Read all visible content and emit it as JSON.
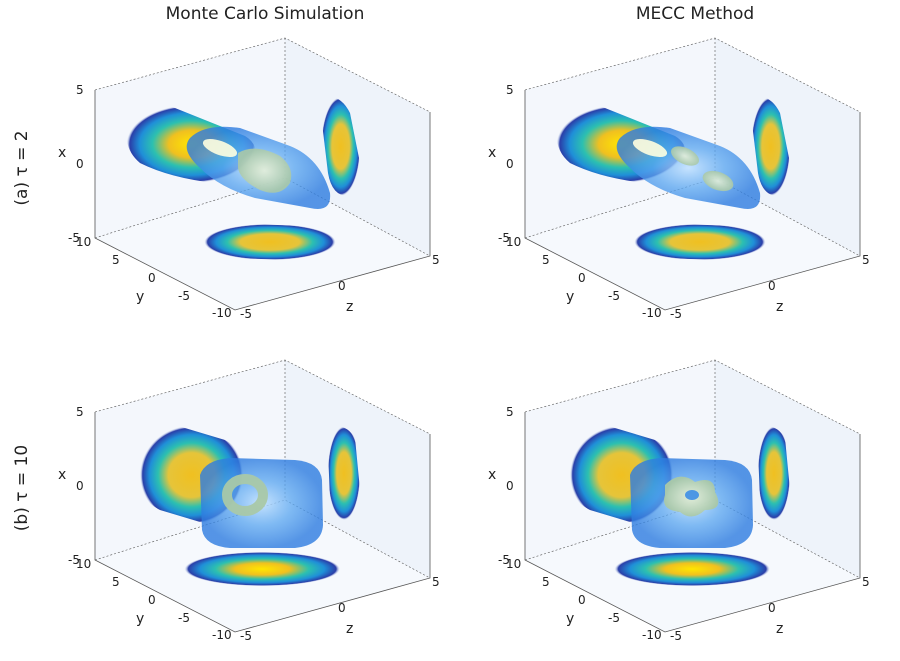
{
  "columns": {
    "left_title": "Monte Carlo Simulation",
    "right_title": "MECC Method"
  },
  "rows": {
    "top_label": "(a) τ = 2",
    "bottom_label": "(b) τ = 10"
  },
  "axes": {
    "x_label": "x",
    "y_label": "y",
    "z_label": "z",
    "x_ticks": [
      "5",
      "0",
      "-5"
    ],
    "y_ticks": [
      "10",
      "5",
      "0",
      "-5",
      "-10"
    ],
    "z_ticks": [
      "-5",
      "0",
      "5"
    ]
  },
  "colors": {
    "pane": "#f3f7fc",
    "colormap": [
      "#2a3ea8",
      "#1f8fd8",
      "#2cc0b0",
      "#f0c020",
      "#ffe600"
    ],
    "isosurface_outer": "#2f7de0",
    "isosurface_inner": "#a9c8a8"
  }
}
